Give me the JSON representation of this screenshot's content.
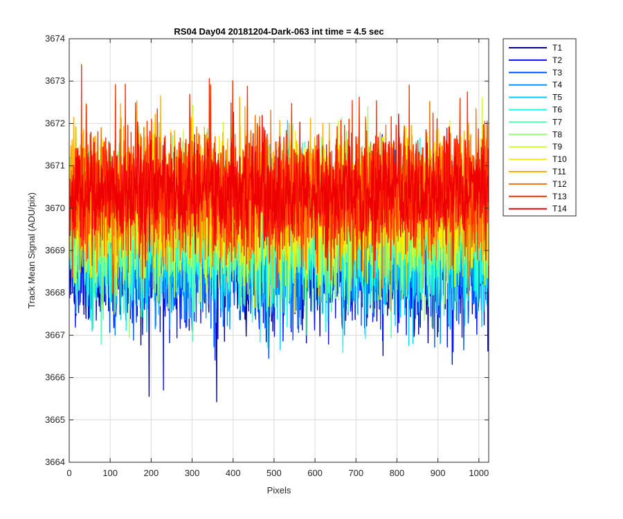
{
  "chart_data": {
    "type": "line",
    "title": "RS04 Day04 20181204-Dark-063 int time = 4.5 sec",
    "xlabel": "Pixels",
    "ylabel": "Track Mean Signal (ADU/pix)",
    "xlim": [
      0,
      1024
    ],
    "ylim": [
      3664,
      3674
    ],
    "xticks": [
      "0",
      "100",
      "200",
      "300",
      "400",
      "500",
      "600",
      "700",
      "800",
      "900",
      "1000"
    ],
    "yticks": [
      "3664",
      "3665",
      "3666",
      "3667",
      "3668",
      "3669",
      "3670",
      "3671",
      "3672",
      "3673",
      "3674"
    ],
    "grid": true,
    "legend_position": "outside-top-right",
    "num_points": 1024,
    "series": [
      {
        "name": "T1",
        "color": "#00008f",
        "mean": 3668.9,
        "spread": 1.15
      },
      {
        "name": "T2",
        "color": "#0010ff",
        "mean": 3668.9,
        "spread": 1.15
      },
      {
        "name": "T3",
        "color": "#0050ff",
        "mean": 3669.0,
        "spread": 1.1
      },
      {
        "name": "T4",
        "color": "#0090ff",
        "mean": 3669.1,
        "spread": 1.1
      },
      {
        "name": "T5",
        "color": "#00d0ff",
        "mean": 3669.2,
        "spread": 1.1
      },
      {
        "name": "T6",
        "color": "#10ffef",
        "mean": 3669.3,
        "spread": 1.1
      },
      {
        "name": "T7",
        "color": "#50ffaf",
        "mean": 3669.5,
        "spread": 1.1
      },
      {
        "name": "T8",
        "color": "#90ff6f",
        "mean": 3669.8,
        "spread": 1.1
      },
      {
        "name": "T9",
        "color": "#cfff30",
        "mean": 3670.0,
        "spread": 1.1
      },
      {
        "name": "T10",
        "color": "#ffef00",
        "mean": 3670.1,
        "spread": 1.1
      },
      {
        "name": "T11",
        "color": "#ffaf00",
        "mean": 3670.3,
        "spread": 1.1
      },
      {
        "name": "T12",
        "color": "#ff7000",
        "mean": 3670.3,
        "spread": 1.1
      },
      {
        "name": "T13",
        "color": "#ff3000",
        "mean": 3670.4,
        "spread": 1.1
      },
      {
        "name": "T14",
        "color": "#ef0000",
        "mean": 3670.4,
        "spread": 0.8
      }
    ]
  }
}
